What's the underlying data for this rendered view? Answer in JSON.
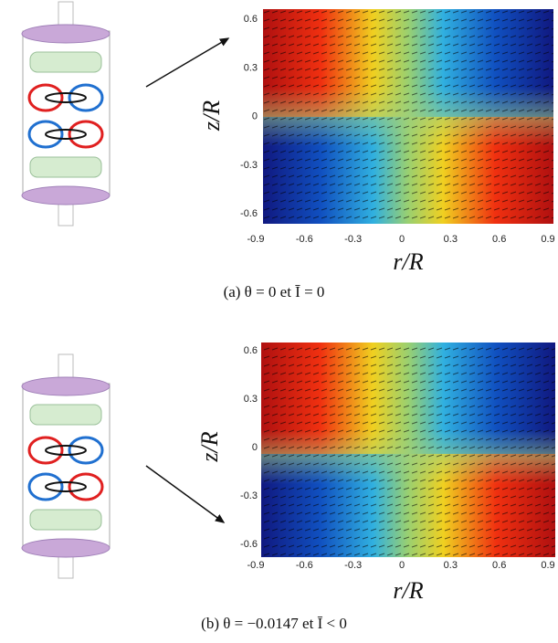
{
  "figure": {
    "panels": [
      {
        "caption": "(a) θ = 0 et Ī = 0",
        "xlabel": "r/R",
        "ylabel": "z/R",
        "xticks": [
          "-0.9",
          "-0.6",
          "-0.3",
          "0",
          "0.3",
          "0.6",
          "0.9"
        ],
        "yticks": [
          "0.6",
          "0.3",
          "0",
          "-0.3",
          "-0.6"
        ]
      },
      {
        "caption": "(b) θ = −0.0147 et Ī < 0",
        "xlabel": "r/R",
        "ylabel": "z/R",
        "xticks": [
          "-0.9",
          "-0.6",
          "-0.3",
          "0",
          "0.3",
          "0.6",
          "0.9"
        ],
        "yticks": [
          "0.6",
          "0.3",
          "0",
          "-0.3",
          "-0.6"
        ]
      }
    ]
  }
}
